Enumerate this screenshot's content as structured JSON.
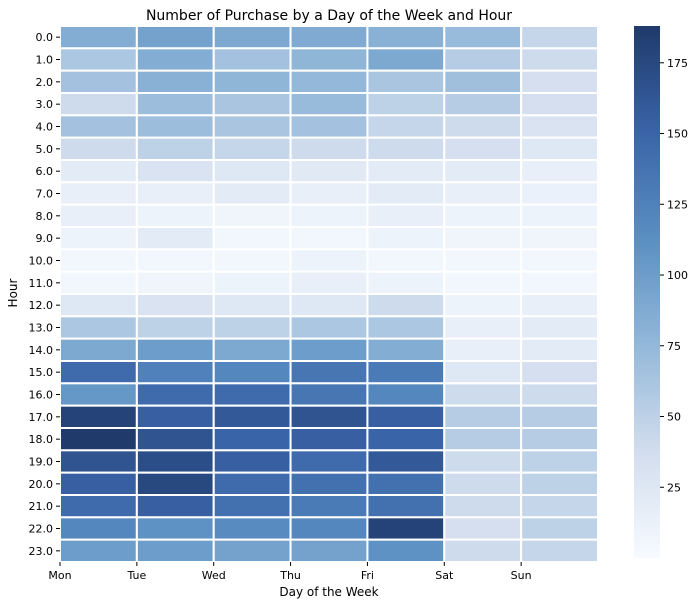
{
  "chart_data": {
    "type": "heatmap",
    "title": "Number of Purchase by a Day of the Week and Hour",
    "xlabel": "Day of the Week",
    "ylabel": "Hour",
    "x_categories": [
      "Mon",
      "Tue",
      "Wed",
      "Thu",
      "Fri",
      "Sat",
      "Sun"
    ],
    "y_categories": [
      "0.0",
      "1.0",
      "2.0",
      "3.0",
      "4.0",
      "5.0",
      "6.0",
      "7.0",
      "8.0",
      "9.0",
      "10.0",
      "11.0",
      "12.0",
      "13.0",
      "14.0",
      "15.0",
      "16.0",
      "17.0",
      "18.0",
      "19.0",
      "20.0",
      "21.0",
      "22.0",
      "23.0"
    ],
    "values": [
      [
        85,
        95,
        90,
        88,
        82,
        72,
        45
      ],
      [
        60,
        85,
        65,
        78,
        90,
        55,
        40
      ],
      [
        65,
        82,
        78,
        75,
        62,
        68,
        35
      ],
      [
        40,
        70,
        62,
        72,
        50,
        55,
        35
      ],
      [
        65,
        70,
        62,
        65,
        45,
        40,
        30
      ],
      [
        40,
        50,
        45,
        40,
        40,
        35,
        25
      ],
      [
        20,
        30,
        25,
        22,
        20,
        20,
        15
      ],
      [
        15,
        15,
        20,
        15,
        20,
        15,
        12
      ],
      [
        15,
        10,
        8,
        10,
        15,
        10,
        10
      ],
      [
        10,
        20,
        5,
        5,
        10,
        8,
        8
      ],
      [
        5,
        5,
        5,
        10,
        5,
        5,
        5
      ],
      [
        5,
        8,
        10,
        15,
        10,
        5,
        5
      ],
      [
        25,
        30,
        25,
        25,
        40,
        10,
        15
      ],
      [
        60,
        50,
        50,
        60,
        60,
        15,
        20
      ],
      [
        90,
        100,
        90,
        100,
        85,
        15,
        20
      ],
      [
        145,
        125,
        120,
        135,
        130,
        25,
        35
      ],
      [
        105,
        145,
        145,
        135,
        120,
        40,
        40
      ],
      [
        180,
        155,
        160,
        165,
        155,
        55,
        55
      ],
      [
        188,
        165,
        150,
        155,
        150,
        55,
        55
      ],
      [
        165,
        170,
        155,
        145,
        160,
        40,
        50
      ],
      [
        155,
        175,
        145,
        140,
        140,
        40,
        50
      ],
      [
        145,
        155,
        140,
        130,
        140,
        40,
        45
      ],
      [
        120,
        110,
        115,
        120,
        180,
        35,
        50
      ],
      [
        100,
        100,
        95,
        95,
        110,
        40,
        45
      ]
    ],
    "colorbar": {
      "vmin": 0,
      "vmax": 188,
      "ticks": [
        "25",
        "50",
        "75",
        "100",
        "125",
        "150",
        "175"
      ]
    },
    "colormap": [
      "#f7fbff",
      "#d2ddee",
      "#93b8d9",
      "#5a8fc2",
      "#3a64a8",
      "#1f3a6b"
    ],
    "grid": false
  }
}
